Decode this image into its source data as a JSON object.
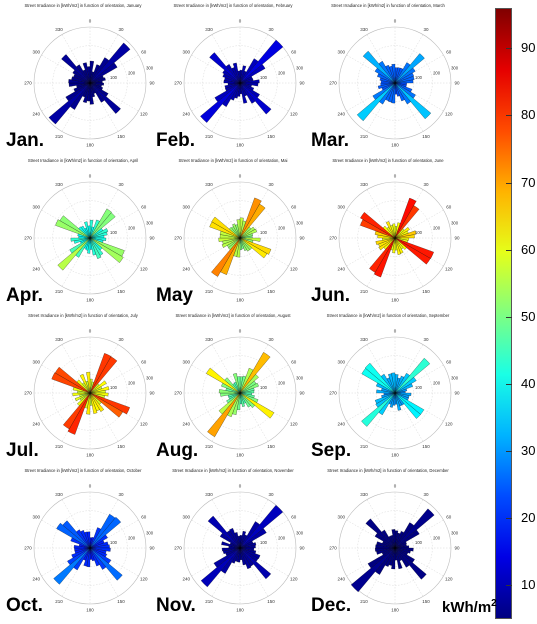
{
  "chart_data": {
    "type": "polar-bar",
    "angle_ticks": [
      "0",
      "30",
      "60",
      "90",
      "120",
      "150",
      "180",
      "210",
      "240",
      "270",
      "300",
      "330"
    ],
    "radius_ticks": [
      "100",
      "200",
      "300"
    ],
    "colorbar": {
      "ticks": [
        "10",
        "20",
        "30",
        "40",
        "50",
        "60",
        "70",
        "80",
        "90"
      ],
      "range": [
        5,
        96
      ],
      "unit_label": "kWh/m",
      "unit_sup": "2",
      "colormap": "jet"
    },
    "panels": [
      {
        "title": "Street Irradiance in [kWh/m2] in function of orientation, January",
        "month_label": "Jan.",
        "value": 8,
        "spokes": [
          [
            45,
            1.0
          ],
          [
            225,
            1.0
          ],
          [
            135,
            0.75
          ],
          [
            315,
            0.7
          ]
        ]
      },
      {
        "title": "Street Irradiance in [kWh/m2] in function of orientation, February",
        "month_label": "Feb.",
        "value": 13,
        "spokes": [
          [
            45,
            1.0
          ],
          [
            225,
            1.0
          ],
          [
            135,
            0.75
          ],
          [
            315,
            0.7
          ]
        ]
      },
      {
        "title": "Street Irradiance in [kWh/m2] in function of orientation, March",
        "month_label": "Mar.",
        "value": 35,
        "spokes": [
          [
            45,
            0.75
          ],
          [
            225,
            0.85
          ],
          [
            135,
            0.85
          ],
          [
            315,
            0.8
          ]
        ]
      },
      {
        "title": "Street Irradiance in [kWh/m2] in function of orientation, April",
        "month_label": "Apr.",
        "value": 60,
        "spokes": [
          [
            40,
            0.7
          ],
          [
            225,
            0.75
          ],
          [
            120,
            0.8
          ],
          [
            300,
            0.75
          ]
        ]
      },
      {
        "title": "Street Irradiance in [kWh/m2] in function of orientation, Mai",
        "month_label": "May",
        "value": 77,
        "spokes": [
          [
            30,
            0.85
          ],
          [
            210,
            0.9
          ],
          [
            120,
            0.7
          ],
          [
            300,
            0.7
          ]
        ]
      },
      {
        "title": "Street Irradiance in [kWh/m2] in function of orientation, June",
        "month_label": "Jun.",
        "value": 90,
        "spokes": [
          [
            30,
            0.85
          ],
          [
            210,
            0.9
          ],
          [
            120,
            0.85
          ],
          [
            300,
            0.85
          ]
        ]
      },
      {
        "title": "Street Irradiance in [kWh/m2] in function of orientation, July",
        "month_label": "Jul.",
        "value": 86,
        "spokes": [
          [
            30,
            0.85
          ],
          [
            210,
            0.9
          ],
          [
            120,
            0.85
          ],
          [
            300,
            0.85
          ]
        ]
      },
      {
        "title": "Street Irradiance in [kWh/m2] in function of orientation, August",
        "month_label": "Aug.",
        "value": 70,
        "spokes": [
          [
            35,
            0.85
          ],
          [
            215,
            0.9
          ],
          [
            125,
            0.7
          ],
          [
            305,
            0.7
          ]
        ]
      },
      {
        "title": "Street Irradiance in [kWh/m2] in function of orientation, September",
        "month_label": "Sep.",
        "value": 45,
        "spokes": [
          [
            45,
            0.8
          ],
          [
            225,
            0.8
          ],
          [
            130,
            0.75
          ],
          [
            310,
            0.8
          ]
        ]
      },
      {
        "title": "Street Irradiance in [kWh/m2] in function of orientation, October",
        "month_label": "Oct.",
        "value": 28,
        "spokes": [
          [
            40,
            0.9
          ],
          [
            225,
            0.9
          ],
          [
            135,
            0.8
          ],
          [
            310,
            0.8
          ]
        ]
      },
      {
        "title": "Street Irradiance in [kWh/m2] in function of orientation, November",
        "month_label": "Nov.",
        "value": 10,
        "spokes": [
          [
            45,
            1.0
          ],
          [
            225,
            1.0
          ],
          [
            135,
            0.75
          ],
          [
            315,
            0.75
          ]
        ]
      },
      {
        "title": "Street Irradiance in [kWh/m2] in function of orientation, December",
        "month_label": "Dec.",
        "value": 6,
        "spokes": [
          [
            45,
            1.0
          ],
          [
            225,
            1.0
          ],
          [
            135,
            0.75
          ],
          [
            315,
            0.75
          ]
        ]
      }
    ]
  }
}
